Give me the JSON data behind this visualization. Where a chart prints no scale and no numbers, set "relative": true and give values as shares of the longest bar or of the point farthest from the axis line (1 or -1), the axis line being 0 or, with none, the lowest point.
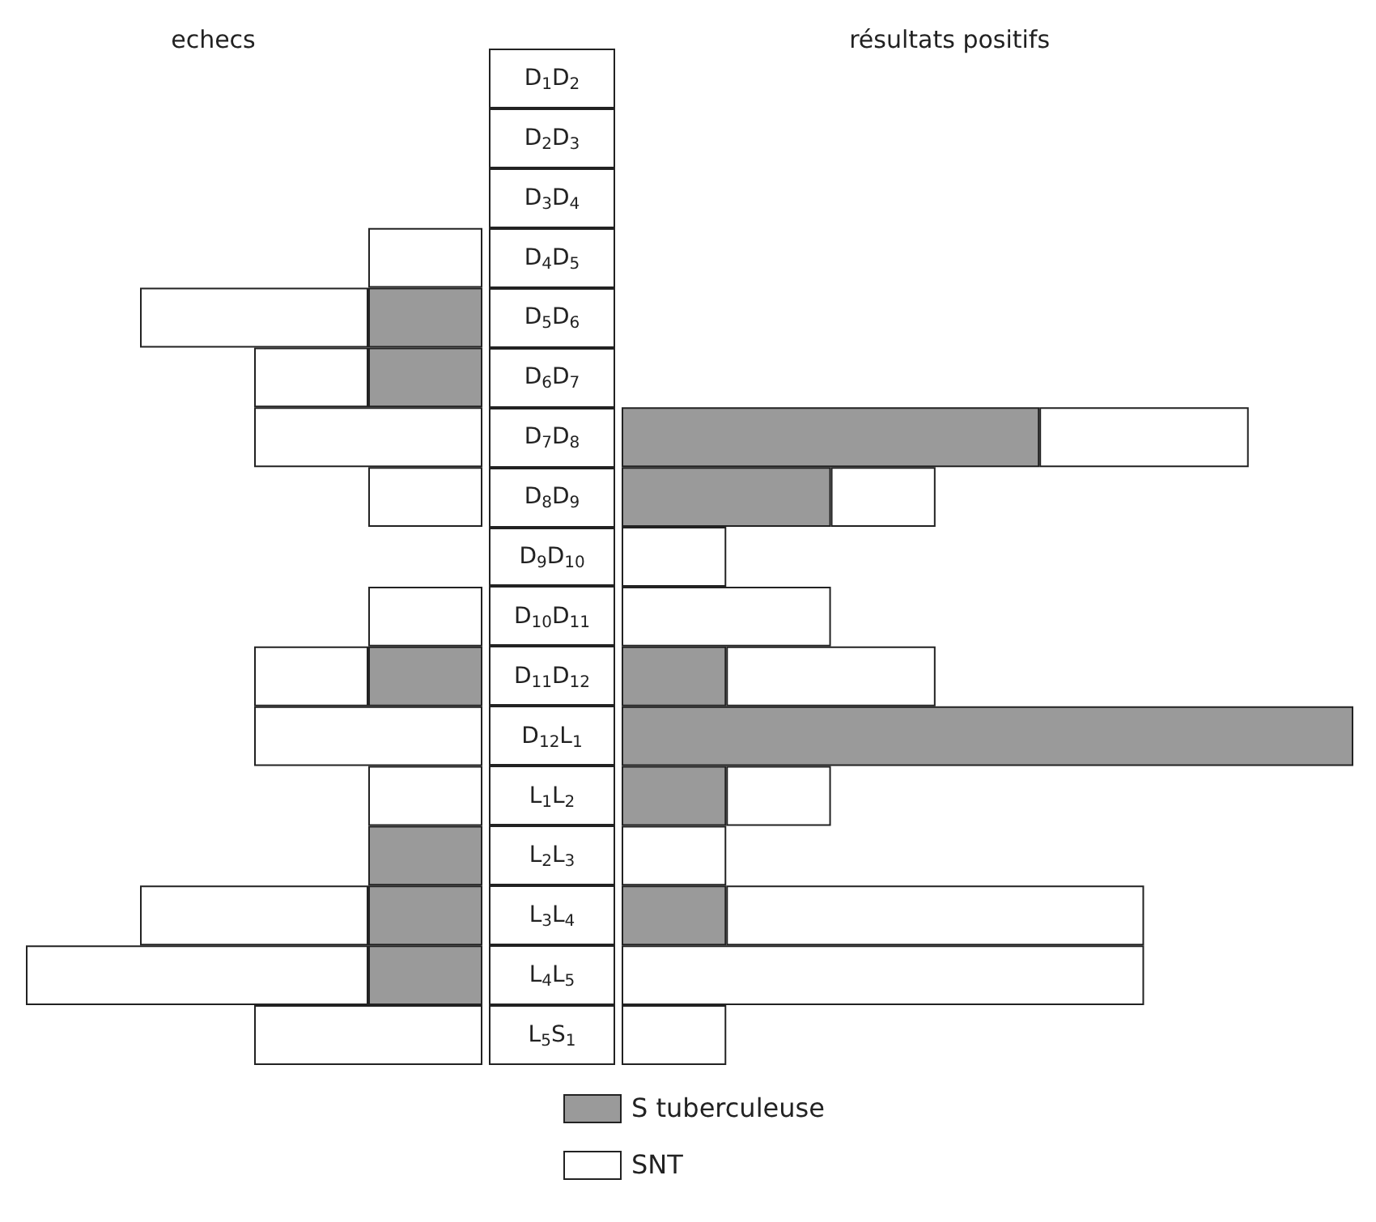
{
  "chart_data": [
    {
      "type": "bar",
      "orientation": "horizontal",
      "stacked": true,
      "relative": true,
      "tick_labels": false,
      "legend": "bottom",
      "title": "echecs",
      "categories": [
        "D$_{1}$D$_{2}$",
        "D$_{2}$D$_{3}$",
        "D$_{3}$D$_{4}$",
        "D$_{4}$D$_{5}$",
        "D$_{5}$D$_{6}$",
        "D$_{6}$D$_{7}$",
        "D$_{7}$D$_{8}$",
        "D$_{8}$D$_{9}$",
        "D$_{9}$D$_{10}$",
        "D$_{10}$D$_{11}$",
        "D$_{11}$D$_{12}$",
        "D$_{12}$L$_{1}$",
        "L$_{1}$L$_{2}$",
        "L$_{2}$L$_{3}$",
        "L$_{3}$L$_{4}$",
        "L$_{4}$L$_{5}$",
        "L$_{5}$S$_{1}$"
      ],
      "series": [
        {
          "name": "S tuberculeuse",
          "color": "#9a9a9a",
          "values": [
            null,
            null,
            null,
            null,
            -0.25,
            -0.25,
            null,
            null,
            null,
            null,
            -0.25,
            null,
            null,
            -0.25,
            -0.25,
            -0.25,
            null
          ]
        },
        {
          "name": "SNT",
          "color": "#ffffff",
          "values": [
            null,
            null,
            null,
            -0.25,
            -0.5,
            -0.25,
            -0.5,
            -0.25,
            null,
            -0.25,
            -0.25,
            -0.5,
            -0.25,
            null,
            -0.5,
            -0.75,
            -0.5
          ]
        }
      ]
    },
    {
      "type": "bar",
      "orientation": "horizontal",
      "stacked": true,
      "relative": true,
      "title": "résultats positifs",
      "categories": [
        "D$_{1}$D$_{2}$",
        "D$_{2}$D$_{3}$",
        "D$_{3}$D$_{4}$",
        "D$_{4}$D$_{5}$",
        "D$_{5}$D$_{6}$",
        "D$_{6}$D$_{7}$",
        "D$_{7}$D$_{8}$",
        "D$_{8}$D$_{9}$",
        "D$_{9}$D$_{10}$",
        "D$_{10}$D$_{11}$",
        "D$_{11}$D$_{12}$",
        "D$_{12}$L$_{1}$",
        "L$_{1}$L$_{2}$",
        "L$_{2}$L$_{3}$",
        "L$_{3}$L$_{4}$",
        "L$_{4}$L$_{5}$",
        "L$_{5}$S$_{1}$"
      ],
      "series": [
        {
          "name": "S tuberculeuse",
          "color": "#9a9a9a",
          "values": [
            null,
            null,
            null,
            null,
            null,
            null,
            0.571,
            0.286,
            null,
            null,
            0.143,
            1,
            0.143,
            null,
            0.143,
            null,
            null
          ]
        },
        {
          "name": "SNT",
          "color": "#ffffff",
          "values": [
            null,
            null,
            null,
            null,
            null,
            null,
            0.286,
            0.143,
            0.143,
            0.286,
            0.286,
            null,
            0.143,
            0.143,
            0.571,
            0.714,
            0.143
          ]
        }
      ]
    }
  ]
}
